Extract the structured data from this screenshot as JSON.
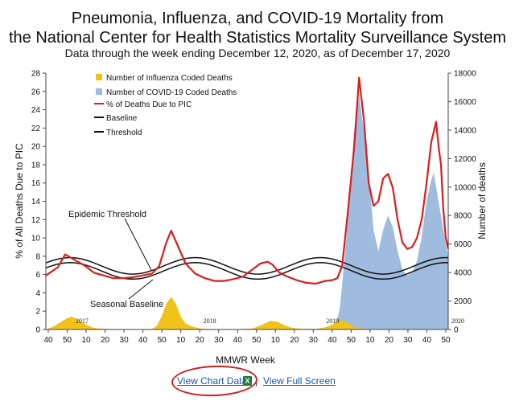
{
  "chart_data": {
    "type": "line",
    "title": "Pneumonia, Influenza, and COVID-19 Mortality from",
    "title_line2": "the National Center for Health Statistics Mortality Surveillance System",
    "subtitle": "Data through the week ending December 12, 2020, as of December 17, 2020",
    "xlabel": "MMWR Week",
    "ylabel_left": "% of All Deaths Due to PIC",
    "ylabel_right": "Number of deaths",
    "ylim_left": [
      0,
      28
    ],
    "ylim_right": [
      0,
      18000
    ],
    "y_ticks_left": [
      "0",
      "2",
      "4",
      "6",
      "8",
      "10",
      "12",
      "14",
      "16",
      "18",
      "20",
      "22",
      "24",
      "26",
      "28"
    ],
    "y_ticks_right": [
      "0",
      "2000",
      "4000",
      "6000",
      "8000",
      "10000",
      "12000",
      "14000",
      "16000",
      "18000"
    ],
    "x_ticks": [
      "40",
      "50",
      "10",
      "20",
      "30",
      "40",
      "50",
      "10",
      "20",
      "30",
      "40",
      "50",
      "10",
      "20",
      "30",
      "40",
      "50",
      "10",
      "20",
      "30",
      "40",
      "50"
    ],
    "season_labels": [
      {
        "label": "2017",
        "index": 15
      },
      {
        "label": "2018",
        "index": 68
      },
      {
        "label": "2019",
        "index": 119
      },
      {
        "label": "2020",
        "index": 171
      }
    ],
    "annotations": [
      "Epidemic Threshold",
      "Seasonal Baseline"
    ],
    "legend": [
      {
        "label": "Number of Influenza Coded Deaths",
        "color": "#f0c21a",
        "kind": "box"
      },
      {
        "label": "Number of COVID-19 Coded Deaths",
        "color": "#9fbbde",
        "kind": "box"
      },
      {
        "label": "% of Deaths Due to PIC",
        "color": "#d81e1e",
        "kind": "line"
      },
      {
        "label": "Baseline",
        "color": "#111111",
        "kind": "line"
      },
      {
        "label": "Threshold",
        "color": "#111111",
        "kind": "line"
      }
    ],
    "legend_position": "top-left",
    "pic_points": [
      [
        0,
        5.9
      ],
      [
        5,
        6.8
      ],
      [
        8,
        8.2
      ],
      [
        12,
        7.6
      ],
      [
        16,
        7.0
      ],
      [
        20,
        6.2
      ],
      [
        24,
        5.9
      ],
      [
        28,
        5.6
      ],
      [
        32,
        5.6
      ],
      [
        36,
        5.7
      ],
      [
        40,
        5.9
      ],
      [
        44,
        6.1
      ],
      [
        47,
        6.9
      ],
      [
        50,
        9.5
      ],
      [
        52,
        10.8
      ],
      [
        55,
        9.0
      ],
      [
        58,
        7.2
      ],
      [
        62,
        6.1
      ],
      [
        66,
        5.6
      ],
      [
        70,
        5.3
      ],
      [
        74,
        5.3
      ],
      [
        78,
        5.5
      ],
      [
        82,
        5.8
      ],
      [
        86,
        6.6
      ],
      [
        89,
        7.2
      ],
      [
        92,
        7.4
      ],
      [
        94,
        7.1
      ],
      [
        97,
        6.2
      ],
      [
        100,
        5.8
      ],
      [
        104,
        5.4
      ],
      [
        108,
        5.1
      ],
      [
        112,
        5.0
      ],
      [
        116,
        5.3
      ],
      [
        119,
        5.4
      ],
      [
        121,
        5.6
      ],
      [
        123,
        7.0
      ],
      [
        125,
        12.0
      ],
      [
        128,
        20.0
      ],
      [
        130,
        27.5
      ],
      [
        132,
        23.0
      ],
      [
        134,
        16.0
      ],
      [
        136,
        13.5
      ],
      [
        138,
        14.0
      ],
      [
        140,
        16.5
      ],
      [
        142,
        17.0
      ],
      [
        144,
        15.5
      ],
      [
        146,
        12.0
      ],
      [
        148,
        9.5
      ],
      [
        150,
        8.8
      ],
      [
        152,
        9.0
      ],
      [
        154,
        10.0
      ],
      [
        156,
        12.0
      ],
      [
        158,
        16.0
      ],
      [
        160,
        20.5
      ],
      [
        162,
        22.7
      ],
      [
        163,
        20.0
      ],
      [
        164,
        18.0
      ],
      [
        165,
        13.0
      ],
      [
        166,
        10.0
      ],
      [
        167,
        8.8
      ]
    ],
    "covid_points": [
      [
        118,
        0
      ],
      [
        120,
        0
      ],
      [
        122,
        1500
      ],
      [
        124,
        5000
      ],
      [
        126,
        9000
      ],
      [
        128,
        14000
      ],
      [
        130,
        16500
      ],
      [
        132,
        14000
      ],
      [
        134,
        11000
      ],
      [
        136,
        7000
      ],
      [
        138,
        5500
      ],
      [
        140,
        7000
      ],
      [
        142,
        8000
      ],
      [
        144,
        7200
      ],
      [
        146,
        5500
      ],
      [
        148,
        4200
      ],
      [
        150,
        3800
      ],
      [
        152,
        4000
      ],
      [
        154,
        4800
      ],
      [
        156,
        6500
      ],
      [
        158,
        9000
      ],
      [
        160,
        10500
      ],
      [
        161,
        11000
      ],
      [
        162,
        10000
      ],
      [
        164,
        8000
      ],
      [
        166,
        6000
      ],
      [
        167,
        5000
      ]
    ],
    "flu_points": [
      [
        0,
        0
      ],
      [
        3,
        200
      ],
      [
        6,
        500
      ],
      [
        9,
        800
      ],
      [
        11,
        900
      ],
      [
        13,
        700
      ],
      [
        16,
        400
      ],
      [
        19,
        150
      ],
      [
        22,
        60
      ],
      [
        30,
        30
      ],
      [
        40,
        20
      ],
      [
        44,
        40
      ],
      [
        46,
        250
      ],
      [
        48,
        900
      ],
      [
        50,
        1800
      ],
      [
        52,
        2300
      ],
      [
        54,
        1800
      ],
      [
        56,
        900
      ],
      [
        58,
        400
      ],
      [
        61,
        200
      ],
      [
        64,
        60
      ],
      [
        70,
        30
      ],
      [
        80,
        30
      ],
      [
        86,
        80
      ],
      [
        90,
        350
      ],
      [
        93,
        600
      ],
      [
        96,
        550
      ],
      [
        99,
        300
      ],
      [
        102,
        120
      ],
      [
        106,
        50
      ],
      [
        112,
        40
      ],
      [
        116,
        150
      ],
      [
        119,
        350
      ],
      [
        121,
        650
      ],
      [
        124,
        600
      ],
      [
        126,
        400
      ],
      [
        128,
        150
      ],
      [
        132,
        40
      ],
      [
        140,
        20
      ],
      [
        150,
        10
      ],
      [
        167,
        10
      ]
    ],
    "baseline_mean": 6.4,
    "threshold_offset": 0.55,
    "baseline_amplitude": 0.9,
    "n_weeks": 168
  },
  "footer": {
    "view_chart_data": "View Chart Data",
    "excel_icon": "X",
    "separator": "|",
    "view_full_screen": "View Full Screen"
  }
}
